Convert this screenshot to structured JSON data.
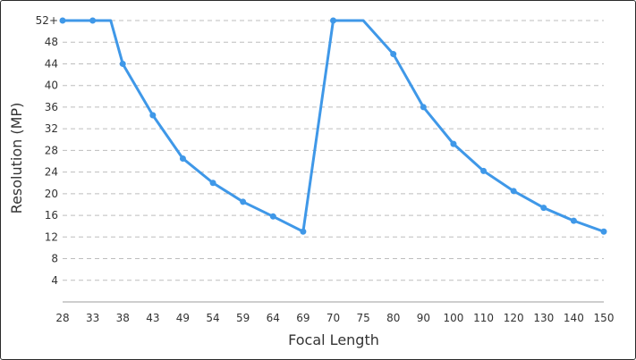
{
  "chart_data": {
    "type": "line",
    "title": "",
    "xlabel": "Focal Length",
    "ylabel": "Resolution (MP)",
    "x_ticks": [
      "28",
      "33",
      "38",
      "43",
      "49",
      "54",
      "59",
      "64",
      "69",
      "70",
      "75",
      "80",
      "90",
      "100",
      "110",
      "120",
      "130",
      "140",
      "150"
    ],
    "y_ticks": [
      "4",
      "8",
      "12",
      "16",
      "20",
      "24",
      "28",
      "32",
      "36",
      "40",
      "44",
      "48",
      "52+"
    ],
    "ylim": [
      0,
      52
    ],
    "grid": true,
    "series": [
      {
        "color": "#3f98e8",
        "points": [
          {
            "x": "28",
            "y": 52
          },
          {
            "x": "33",
            "y": 52
          },
          {
            "x": "36",
            "y": 52,
            "marker": false
          },
          {
            "x": "38",
            "y": 44
          },
          {
            "x": "43",
            "y": 34.5
          },
          {
            "x": "49",
            "y": 26.5
          },
          {
            "x": "54",
            "y": 22
          },
          {
            "x": "59",
            "y": 18.5
          },
          {
            "x": "64",
            "y": 15.8
          },
          {
            "x": "69",
            "y": 13
          },
          {
            "x": "70",
            "y": 52
          },
          {
            "x": "75",
            "y": 52,
            "marker": false
          },
          {
            "x": "80",
            "y": 45.8
          },
          {
            "x": "90",
            "y": 36
          },
          {
            "x": "100",
            "y": 29.2
          },
          {
            "x": "110",
            "y": 24.2
          },
          {
            "x": "120",
            "y": 20.5
          },
          {
            "x": "130",
            "y": 17.4
          },
          {
            "x": "140",
            "y": 15
          },
          {
            "x": "150",
            "y": 13
          }
        ]
      }
    ]
  }
}
